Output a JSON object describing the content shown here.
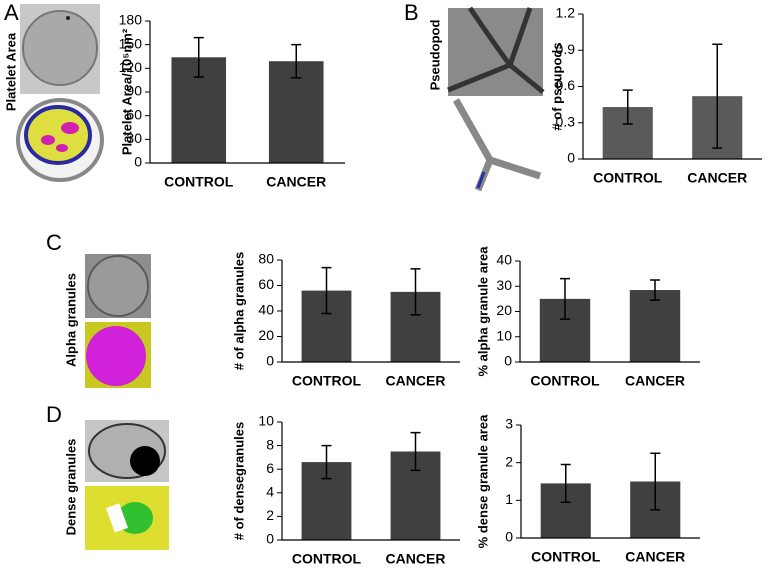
{
  "panels": [
    {
      "letter": "A",
      "image_label": "Platelet Area"
    },
    {
      "letter": "B",
      "image_label": "Pseudopod"
    },
    {
      "letter": "C",
      "image_label": "Alpha granules"
    },
    {
      "letter": "D",
      "image_label": "Dense granules"
    }
  ],
  "chart_data": [
    {
      "type": "bar",
      "y_label": "Platelet Area/10⁵nm²",
      "categories": [
        "CONTROL",
        "CANCER"
      ],
      "values": [
        134,
        129
      ],
      "errors": [
        25,
        21
      ],
      "color": "#404040",
      "ylim": [
        0,
        180
      ],
      "yticks": [
        0,
        30,
        60,
        90,
        120,
        150,
        180
      ]
    },
    {
      "type": "bar",
      "y_label": "# of pseupods",
      "categories": [
        "CONTROL",
        "CANCER"
      ],
      "values": [
        0.43,
        0.52
      ],
      "errors": [
        0.14,
        0.43
      ],
      "color": "#5a5a5a",
      "ylim": [
        0,
        1.2
      ],
      "yticks": [
        0,
        0.3,
        0.6,
        0.9,
        1.2
      ]
    },
    {
      "type": "bar",
      "y_label": "# of alpha granules",
      "categories": [
        "CONTROL",
        "CANCER"
      ],
      "values": [
        56,
        55
      ],
      "errors": [
        18,
        18
      ],
      "color": "#404040",
      "ylim": [
        0,
        80
      ],
      "yticks": [
        0,
        20,
        40,
        60,
        80
      ]
    },
    {
      "type": "bar",
      "y_label": "% alpha granule area",
      "categories": [
        "CONTROL",
        "CANCER"
      ],
      "values": [
        25,
        28.5
      ],
      "errors": [
        8,
        4
      ],
      "color": "#404040",
      "ylim": [
        0,
        40
      ],
      "yticks": [
        0,
        10,
        20,
        30,
        40
      ]
    },
    {
      "type": "bar",
      "y_label": "# of densegranules",
      "categories": [
        "CONTROL",
        "CANCER"
      ],
      "values": [
        6.6,
        7.5
      ],
      "errors": [
        1.4,
        1.6
      ],
      "color": "#404040",
      "ylim": [
        0,
        10
      ],
      "yticks": [
        0,
        2,
        4,
        6,
        8,
        10
      ]
    },
    {
      "type": "bar",
      "y_label": "% dense granule area",
      "categories": [
        "CONTROL",
        "CANCER"
      ],
      "values": [
        1.45,
        1.5
      ],
      "errors": [
        0.5,
        0.75
      ],
      "color": "#404040",
      "ylim": [
        0,
        3
      ],
      "yticks": [
        0,
        1,
        2,
        3
      ]
    }
  ]
}
